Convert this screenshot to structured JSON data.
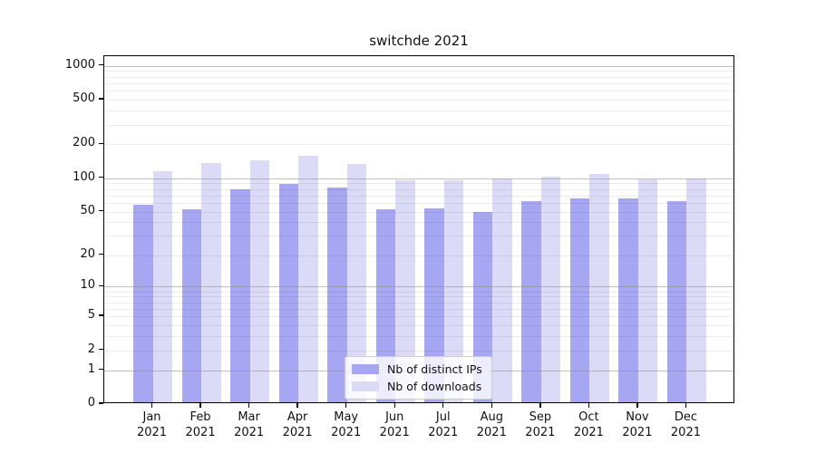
{
  "title": "switchde 2021",
  "year_label": "2021",
  "colors": {
    "distinct_ips_bar": "#a6a6f2",
    "downloads_bar": "#dbdbf8",
    "major_grid": "#8c8c8c",
    "minor_grid": "#e8e8e8",
    "axis": "#000000",
    "text": "#111111",
    "legend_border": "#cccccc",
    "legend_background": "rgba(255,255,255,0.8)"
  },
  "legend": {
    "items": [
      {
        "label": "Nb of distinct IPs"
      },
      {
        "label": "Nb of downloads"
      }
    ]
  },
  "chart_data": {
    "type": "bar",
    "title": "switchde 2021",
    "xlabel": "",
    "ylabel": "",
    "categories": [
      "Jan 2021",
      "Feb 2021",
      "Mar 2021",
      "Apr 2021",
      "May 2021",
      "Jun 2021",
      "Jul 2021",
      "Aug 2021",
      "Sep 2021",
      "Oct 2021",
      "Nov 2021",
      "Dec 2021"
    ],
    "month_labels": [
      "Jan",
      "Feb",
      "Mar",
      "Apr",
      "May",
      "Jun",
      "Jul",
      "Aug",
      "Sep",
      "Oct",
      "Nov",
      "Dec"
    ],
    "series": [
      {
        "name": "Nb of distinct IPs",
        "color": "#a6a6f2",
        "values": [
          56,
          51,
          76,
          85,
          80,
          51,
          52,
          48,
          60,
          63,
          63,
          60
        ]
      },
      {
        "name": "Nb of downloads",
        "color": "#dbdbf8",
        "values": [
          112,
          131,
          140,
          153,
          130,
          92,
          93,
          95,
          100,
          106,
          94,
          95
        ]
      }
    ],
    "yscale": "symlog_ln1p",
    "yticks": [
      0,
      1,
      2,
      5,
      10,
      20,
      50,
      100,
      200,
      500,
      1000
    ],
    "minor_yticks": [
      2,
      3,
      4,
      5,
      6,
      7,
      8,
      9,
      20,
      30,
      40,
      50,
      60,
      70,
      80,
      90,
      200,
      300,
      400,
      500,
      600,
      700,
      800,
      900
    ],
    "major_grid_yticks": [
      1,
      10,
      100,
      1000
    ],
    "ylim": [
      0,
      1220
    ],
    "grid": "horizontal major+minor",
    "legend_position": "lower center"
  }
}
